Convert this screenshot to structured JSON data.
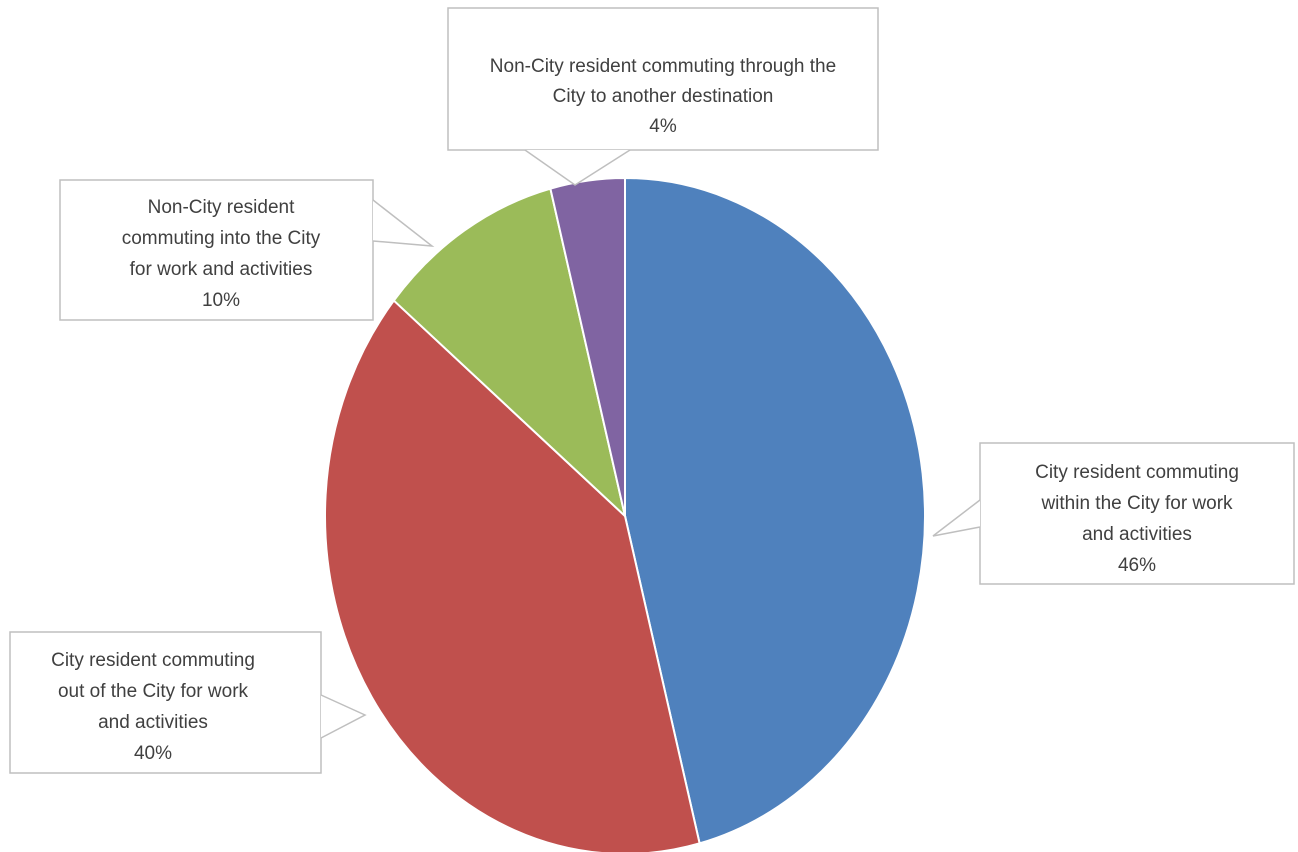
{
  "chart_data": {
    "type": "pie",
    "title": "",
    "slices": [
      {
        "label_lines": [
          "City resident commuting",
          "within the City for work",
          "and activities"
        ],
        "value": 46,
        "value_label": "46%",
        "color": "#4F81BD"
      },
      {
        "label_lines": [
          "City resident commuting",
          "out of the City for work",
          "and activities"
        ],
        "value": 40,
        "value_label": "40%",
        "color": "#C0504D"
      },
      {
        "label_lines": [
          "Non-City resident",
          "commuting into the City",
          "for work and activities"
        ],
        "value": 10,
        "value_label": "10%",
        "color": "#9BBB59"
      },
      {
        "label_lines": [
          "Non-City resident commuting through the",
          "City to another destination"
        ],
        "value": 4,
        "value_label": "4%",
        "color": "#8064A2"
      }
    ],
    "legend": "none",
    "data_labels": "callouts"
  }
}
